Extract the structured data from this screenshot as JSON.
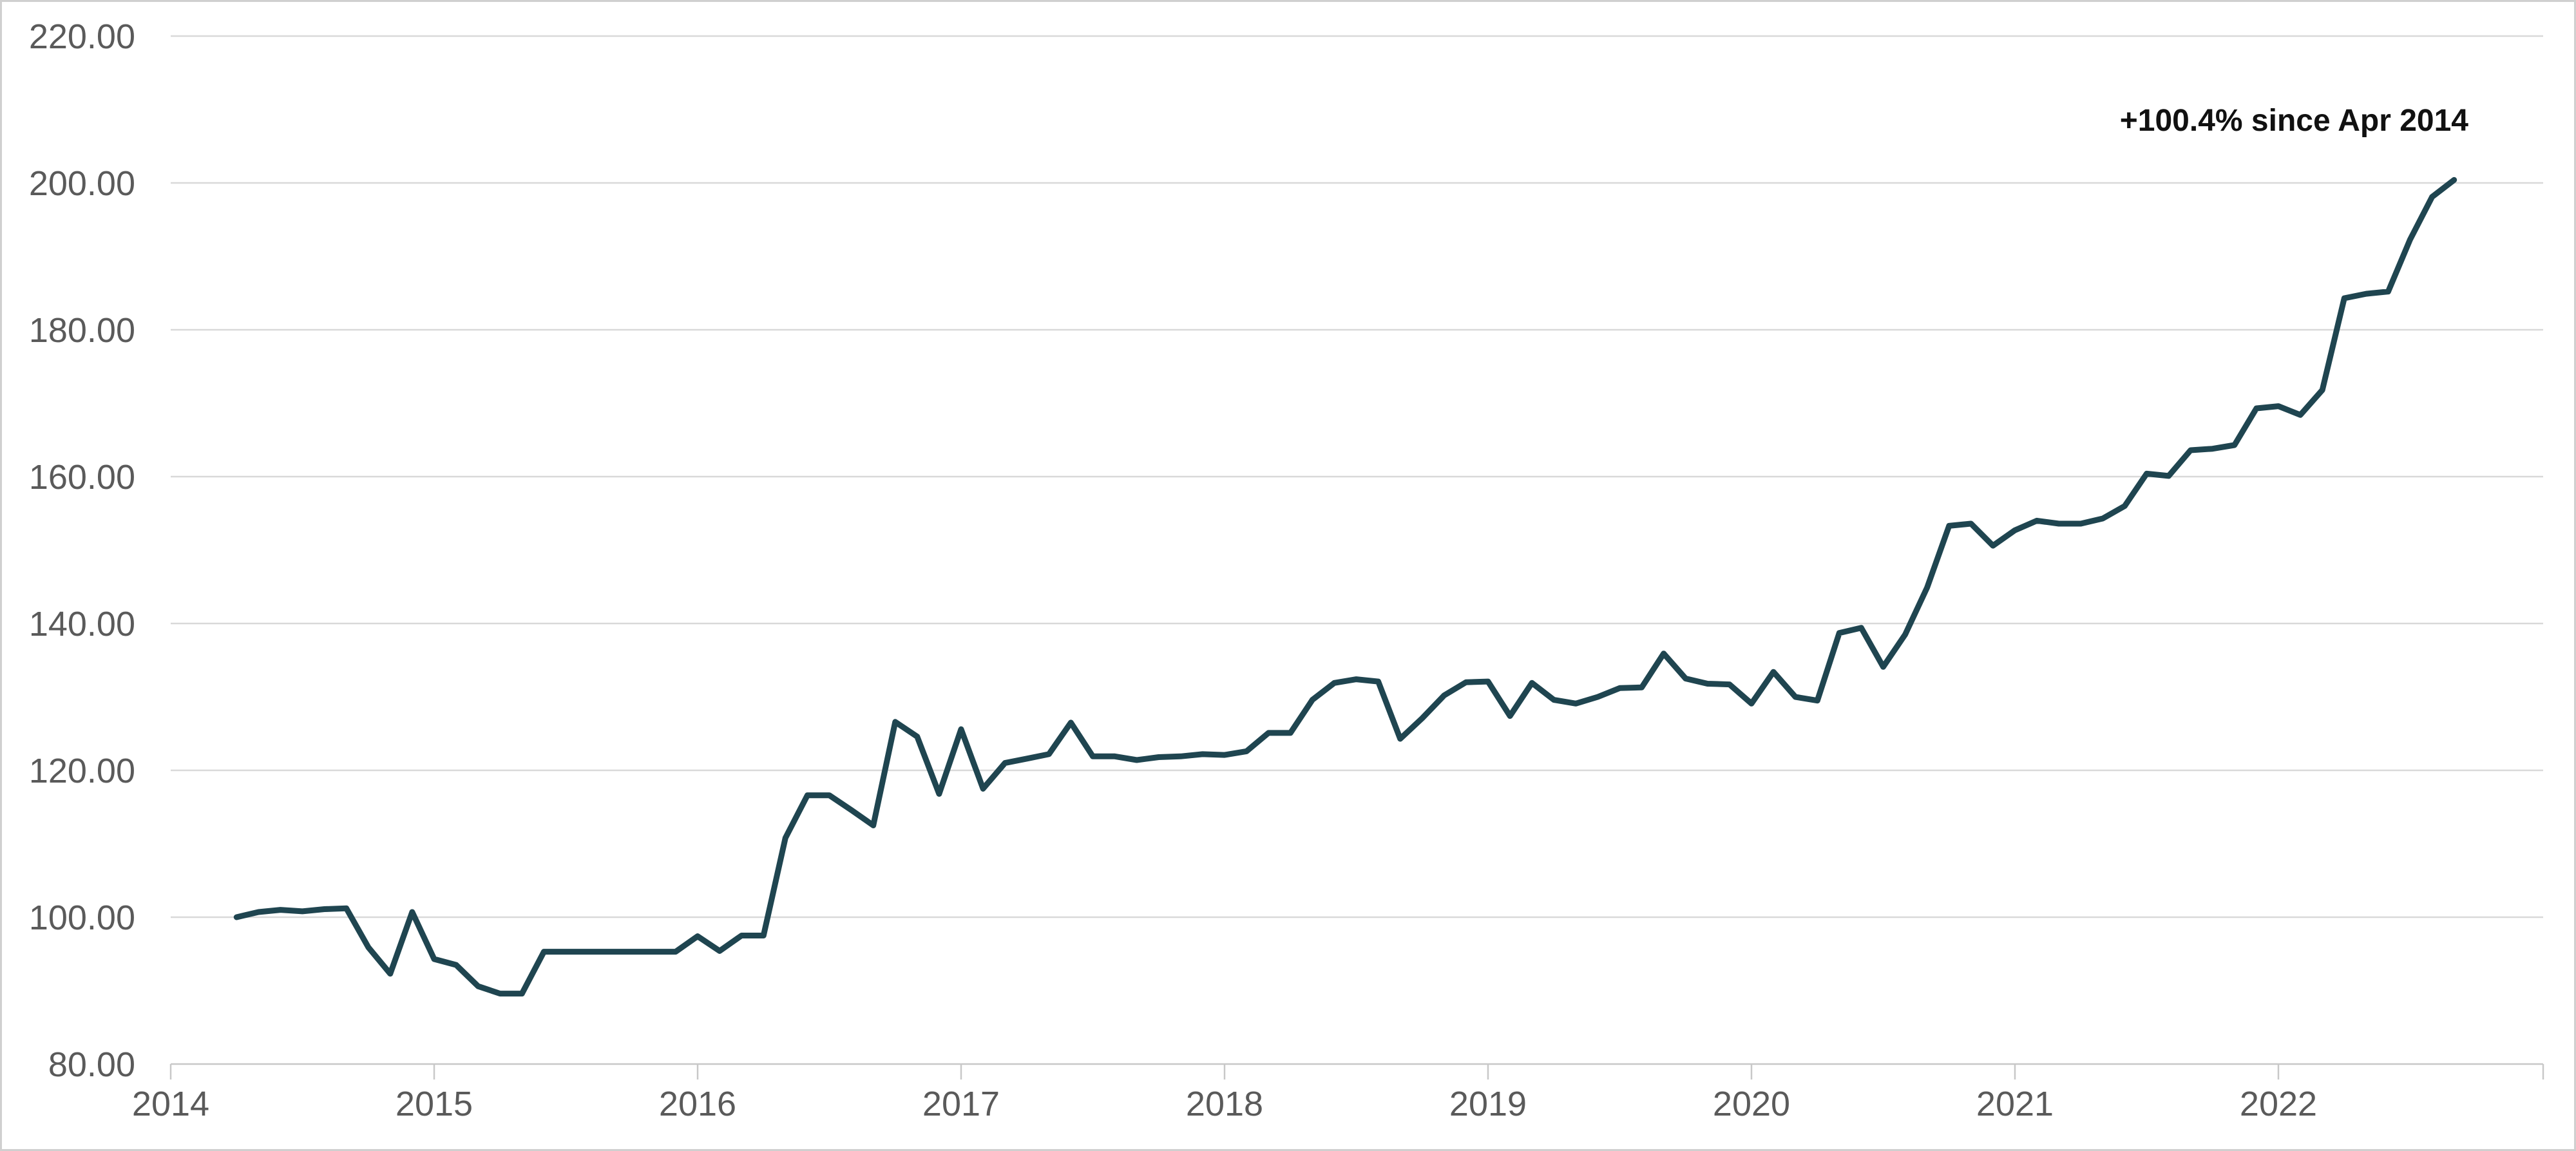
{
  "chart_data": {
    "type": "line",
    "title": "",
    "xlabel": "",
    "ylabel": "",
    "ylim": [
      80,
      220
    ],
    "xlim": [
      "2014-01",
      "2022-12"
    ],
    "y_ticks": [
      "80.00",
      "100.00",
      "120.00",
      "140.00",
      "160.00",
      "180.00",
      "200.00",
      "220.00"
    ],
    "x_ticks": [
      "2014",
      "2015",
      "2016",
      "2017",
      "2018",
      "2019",
      "2020",
      "2021",
      "2022"
    ],
    "grid": "horizontal",
    "annotation": "+100.4% since Apr 2014",
    "series": [
      {
        "color": "#1f4550",
        "points": [
          [
            "2014-04",
            100.0
          ],
          [
            "2014-05",
            100.7
          ],
          [
            "2014-06",
            101.0
          ],
          [
            "2014-07",
            100.8
          ],
          [
            "2014-08",
            101.1
          ],
          [
            "2014-09",
            101.2
          ],
          [
            "2014-10",
            95.9
          ],
          [
            "2014-11",
            92.3
          ],
          [
            "2014-12",
            100.7
          ],
          [
            "2015-01",
            94.3
          ],
          [
            "2015-02",
            93.5
          ],
          [
            "2015-03",
            90.6
          ],
          [
            "2015-04",
            89.6
          ],
          [
            "2015-05",
            89.6
          ],
          [
            "2015-06",
            95.3
          ],
          [
            "2015-07",
            95.3
          ],
          [
            "2015-08",
            95.3
          ],
          [
            "2015-09",
            95.3
          ],
          [
            "2015-10",
            95.3
          ],
          [
            "2015-11",
            95.3
          ],
          [
            "2015-12",
            95.3
          ],
          [
            "2016-01",
            97.4
          ],
          [
            "2016-02",
            95.4
          ],
          [
            "2016-03",
            97.5
          ],
          [
            "2016-04",
            97.5
          ],
          [
            "2016-05",
            110.8
          ],
          [
            "2016-06",
            116.6
          ],
          [
            "2016-07",
            116.6
          ],
          [
            "2016-08",
            114.6
          ],
          [
            "2016-09",
            112.5
          ],
          [
            "2016-10",
            126.6
          ],
          [
            "2016-11",
            124.6
          ],
          [
            "2016-12",
            116.8
          ],
          [
            "2017-01",
            125.6
          ],
          [
            "2017-02",
            117.5
          ],
          [
            "2017-03",
            121.0
          ],
          [
            "2017-04",
            121.6
          ],
          [
            "2017-05",
            122.2
          ],
          [
            "2017-06",
            126.5
          ],
          [
            "2017-07",
            121.9
          ],
          [
            "2017-08",
            121.9
          ],
          [
            "2017-09",
            121.4
          ],
          [
            "2017-10",
            121.8
          ],
          [
            "2017-11",
            121.9
          ],
          [
            "2017-12",
            122.2
          ],
          [
            "2018-01",
            122.1
          ],
          [
            "2018-02",
            122.6
          ],
          [
            "2018-03",
            125.1
          ],
          [
            "2018-04",
            125.1
          ],
          [
            "2018-05",
            129.6
          ],
          [
            "2018-06",
            131.9
          ],
          [
            "2018-07",
            132.4
          ],
          [
            "2018-08",
            132.1
          ],
          [
            "2018-09",
            124.3
          ],
          [
            "2018-10",
            127.1
          ],
          [
            "2018-11",
            130.2
          ],
          [
            "2018-12",
            132.0
          ],
          [
            "2019-01",
            132.1
          ],
          [
            "2019-02",
            127.4
          ],
          [
            "2019-03",
            131.9
          ],
          [
            "2019-04",
            129.6
          ],
          [
            "2019-05",
            129.1
          ],
          [
            "2019-06",
            130.0
          ],
          [
            "2019-07",
            131.2
          ],
          [
            "2019-08",
            131.3
          ],
          [
            "2019-09",
            135.9
          ],
          [
            "2019-10",
            132.5
          ],
          [
            "2019-11",
            131.8
          ],
          [
            "2019-12",
            131.7
          ],
          [
            "2020-01",
            129.1
          ],
          [
            "2020-02",
            133.4
          ],
          [
            "2020-03",
            130.0
          ],
          [
            "2020-04",
            129.5
          ],
          [
            "2020-05",
            138.7
          ],
          [
            "2020-06",
            139.4
          ],
          [
            "2020-07",
            134.1
          ],
          [
            "2020-08",
            138.5
          ],
          [
            "2020-09",
            144.9
          ],
          [
            "2020-10",
            153.3
          ],
          [
            "2020-11",
            153.6
          ],
          [
            "2020-12",
            150.6
          ],
          [
            "2021-01",
            152.7
          ],
          [
            "2021-02",
            154.0
          ],
          [
            "2021-03",
            153.6
          ],
          [
            "2021-04",
            153.6
          ],
          [
            "2021-05",
            154.3
          ],
          [
            "2021-06",
            156.0
          ],
          [
            "2021-07",
            160.4
          ],
          [
            "2021-08",
            160.1
          ],
          [
            "2021-09",
            163.6
          ],
          [
            "2021-10",
            163.8
          ],
          [
            "2021-11",
            164.3
          ],
          [
            "2021-12",
            169.3
          ],
          [
            "2022-01",
            169.6
          ],
          [
            "2022-02",
            168.4
          ],
          [
            "2022-03",
            171.8
          ],
          [
            "2022-04",
            184.3
          ],
          [
            "2022-05",
            184.9
          ],
          [
            "2022-06",
            185.2
          ],
          [
            "2022-07",
            192.3
          ],
          [
            "2022-08",
            198.1
          ],
          [
            "2022-09",
            200.4
          ]
        ]
      }
    ]
  }
}
